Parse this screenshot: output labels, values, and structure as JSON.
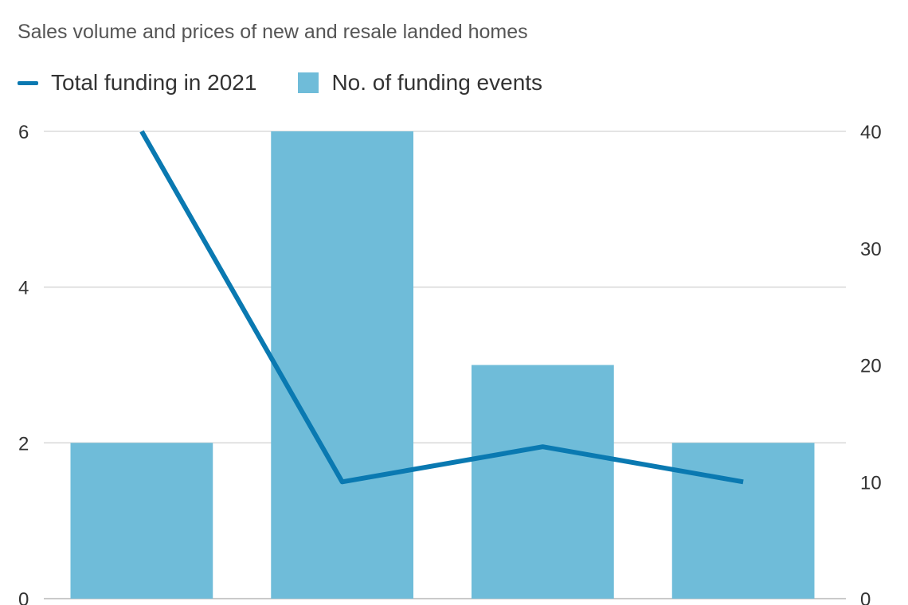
{
  "chart_data": {
    "type": "bar",
    "subtitle": "Sales volume and prices of new and resale landed homes",
    "categories": [
      "",
      "",
      "",
      ""
    ],
    "series": [
      {
        "name": "No. of funding events",
        "kind": "bar",
        "axis": "left",
        "color": "#6fbcd9",
        "values": [
          2,
          6,
          3,
          2
        ]
      },
      {
        "name": "Total funding in 2021",
        "kind": "line",
        "axis": "right",
        "color": "#0a79b1",
        "values": [
          40,
          10,
          13,
          10
        ]
      }
    ],
    "y_left": {
      "ticks": [
        "0",
        "2",
        "4",
        "6"
      ],
      "ylim": [
        0,
        6
      ]
    },
    "y_right": {
      "ticks": [
        "0",
        "10",
        "20",
        "30",
        "40"
      ],
      "ylim": [
        0,
        40
      ]
    },
    "grid": true,
    "legend_position": "top-left"
  }
}
